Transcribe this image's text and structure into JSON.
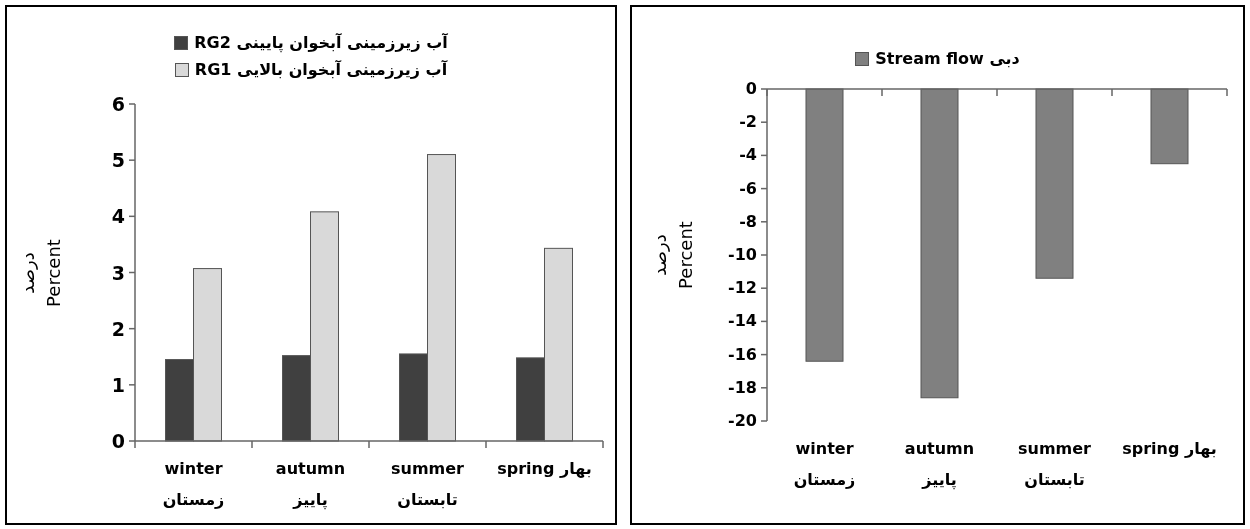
{
  "chart_data": [
    {
      "type": "bar",
      "categories": [
        "winter زمستان",
        "autumn پاییز",
        "summer تابستان",
        "spring بهار"
      ],
      "ylabel": "درصد Percent",
      "ylim": [
        0,
        6
      ],
      "yticks": [
        0,
        1,
        2,
        3,
        4,
        5,
        6
      ],
      "legend": "top",
      "series": [
        {
          "name": "RG2 آب زیرزمینی آبخوان پایینی",
          "color": "#404040",
          "values": [
            1.45,
            1.52,
            1.55,
            1.48
          ]
        },
        {
          "name": "RG1 آب زیرزمینی آبخوان بالایی",
          "color": "#d9d9d9",
          "values": [
            3.07,
            4.08,
            5.1,
            3.43
          ]
        }
      ]
    },
    {
      "type": "bar",
      "categories": [
        "winter زمستان",
        "autumn پاییز",
        "summer تابستان",
        "spring بهار"
      ],
      "ylabel": "درصد Percent",
      "ylim": [
        -20,
        0
      ],
      "yticks": [
        -20,
        -18,
        -16,
        -14,
        -12,
        -10,
        -8,
        -6,
        -4,
        -2,
        0
      ],
      "legend": "top",
      "series": [
        {
          "name": "Stream flow دبی",
          "color": "#808080",
          "values": [
            -16.4,
            -18.6,
            -11.4,
            -4.5
          ]
        }
      ]
    }
  ]
}
